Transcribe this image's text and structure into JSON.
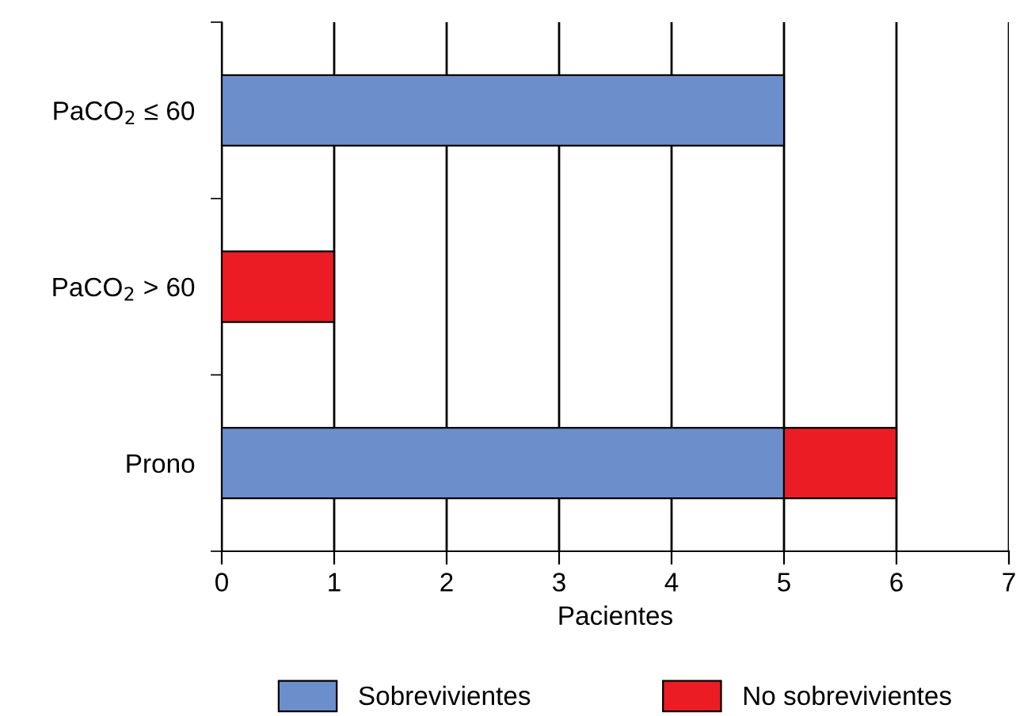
{
  "chart_data": {
    "type": "bar",
    "orientation": "horizontal",
    "stacked": true,
    "categories": [
      "PaCO$_{2}$ ≤ 60",
      "PaCO$_{2}$ > 60",
      "Prono"
    ],
    "series": [
      {
        "name": "Sobrevivientes",
        "color": "#6c8ecb",
        "values": [
          5,
          null,
          5
        ]
      },
      {
        "name": "No sobrevivientes",
        "color": "#ec1c24",
        "values": [
          null,
          1,
          1
        ]
      }
    ],
    "xlabel": "Pacientes",
    "xlim": [
      0,
      7
    ],
    "xticks": [
      0,
      1,
      2,
      3,
      4,
      5,
      6,
      7
    ],
    "grid": "x",
    "legend": "bottom"
  }
}
